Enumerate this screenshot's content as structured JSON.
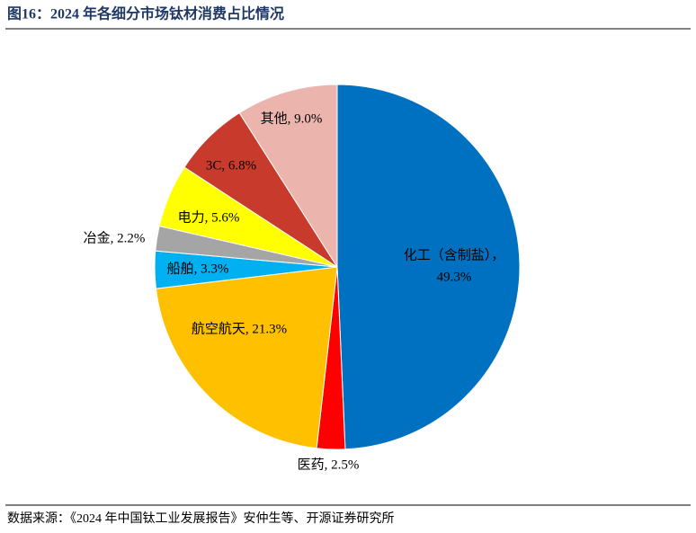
{
  "header": {
    "title": "图16：2024 年各细分市场钛材消费占比情况"
  },
  "chart_data": {
    "type": "pie",
    "values": [
      49.3,
      2.5,
      21.3,
      3.3,
      2.2,
      5.6,
      6.8,
      9.0
    ],
    "labels": [
      [
        "化工（含制盐），",
        "49.3%"
      ],
      [
        "医药, 2.5%"
      ],
      [
        "航空航天, 21.3%"
      ],
      [
        "船舶, 3.3%"
      ],
      [
        "冶金, 2.2%"
      ],
      [
        "电力, 5.6%"
      ],
      [
        "3C, 6.8%"
      ],
      [
        "其他, 9.0%"
      ]
    ],
    "colors": [
      "#0070c0",
      "#ff0000",
      "#ffc000",
      "#00b0f0",
      "#a5a5a5",
      "#ffff00",
      "#c83b2c",
      "#ebb5ae"
    ]
  },
  "footer": {
    "source": "数据来源：《2024 年中国钛工业发展报告》安仲生等、开源证券研究所"
  }
}
